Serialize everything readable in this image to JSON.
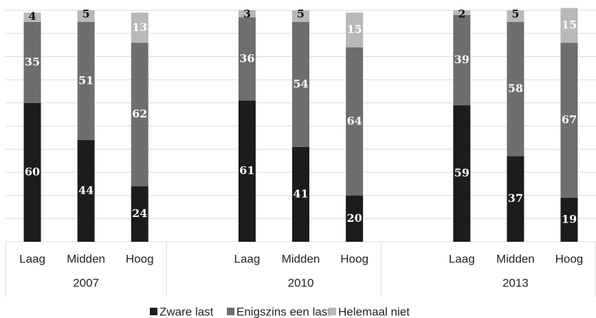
{
  "chart_data": {
    "type": "stacked_bar",
    "categories": [
      "Laag",
      "Midden",
      "Hoog",
      null,
      "Laag",
      "Midden",
      "Hoog",
      null,
      "Laag",
      "Midden",
      "Hoog"
    ],
    "groups": [
      "2007",
      "2010",
      "2013"
    ],
    "series": [
      {
        "name": "Zware last",
        "color": "#1c1c1c",
        "values": [
          60,
          44,
          24,
          null,
          61,
          41,
          20,
          null,
          59,
          37,
          19
        ]
      },
      {
        "name": "Enigszins een last",
        "color": "#6e6e6e",
        "values": [
          35,
          51,
          62,
          null,
          36,
          54,
          64,
          null,
          39,
          58,
          67
        ]
      },
      {
        "name": "Helemaal niet",
        "color": "#b8b8b8",
        "values": [
          4,
          5,
          13,
          null,
          3,
          5,
          15,
          null,
          2,
          5,
          15
        ]
      }
    ],
    "ylim": [
      0,
      100
    ],
    "yticks": [
      0,
      10,
      20,
      30,
      40,
      50,
      60,
      70,
      80,
      90,
      100
    ],
    "grid": true,
    "legend": "bottom"
  }
}
